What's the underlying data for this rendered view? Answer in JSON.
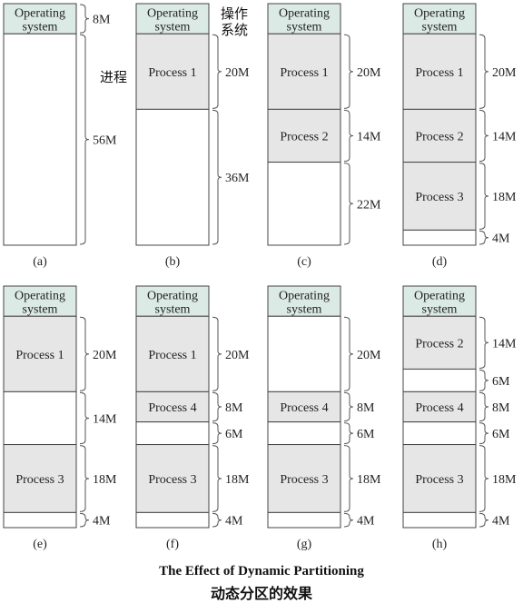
{
  "colors": {
    "os_fill": "#dceae6",
    "process_fill": "#e6e6e6",
    "free_fill": "#ffffff",
    "stroke": "#444444"
  },
  "os_label": [
    "Operating",
    "system"
  ],
  "panels": [
    {
      "label": "(a)",
      "segments": [
        {
          "kind": "os",
          "mb": 8,
          "size": "8M"
        },
        {
          "kind": "free",
          "mb": 56,
          "size": "56M"
        }
      ]
    },
    {
      "label": "(b)",
      "segments": [
        {
          "kind": "os",
          "mb": 8,
          "size": ""
        },
        {
          "kind": "process",
          "mb": 20,
          "name": "Process 1",
          "size": "20M"
        },
        {
          "kind": "free",
          "mb": 36,
          "size": "36M"
        }
      ]
    },
    {
      "label": "(c)",
      "segments": [
        {
          "kind": "os",
          "mb": 8,
          "size": ""
        },
        {
          "kind": "process",
          "mb": 20,
          "name": "Process 1",
          "size": "20M"
        },
        {
          "kind": "process",
          "mb": 14,
          "name": "Process 2",
          "size": "14M"
        },
        {
          "kind": "free",
          "mb": 22,
          "size": "22M"
        }
      ]
    },
    {
      "label": "(d)",
      "segments": [
        {
          "kind": "os",
          "mb": 8,
          "size": ""
        },
        {
          "kind": "process",
          "mb": 20,
          "name": "Process 1",
          "size": "20M"
        },
        {
          "kind": "process",
          "mb": 14,
          "name": "Process 2",
          "size": "14M"
        },
        {
          "kind": "process",
          "mb": 18,
          "name": "Process 3",
          "size": "18M"
        },
        {
          "kind": "free",
          "mb": 4,
          "size": "4M"
        }
      ]
    },
    {
      "label": "(e)",
      "segments": [
        {
          "kind": "os",
          "mb": 8,
          "size": ""
        },
        {
          "kind": "process",
          "mb": 20,
          "name": "Process 1",
          "size": "20M"
        },
        {
          "kind": "free",
          "mb": 14,
          "size": "14M"
        },
        {
          "kind": "process",
          "mb": 18,
          "name": "Process 3",
          "size": "18M"
        },
        {
          "kind": "free",
          "mb": 4,
          "size": "4M"
        }
      ]
    },
    {
      "label": "(f)",
      "segments": [
        {
          "kind": "os",
          "mb": 8,
          "size": ""
        },
        {
          "kind": "process",
          "mb": 20,
          "name": "Process 1",
          "size": "20M"
        },
        {
          "kind": "process",
          "mb": 8,
          "name": "Process 4",
          "size": "8M"
        },
        {
          "kind": "free",
          "mb": 6,
          "size": "6M"
        },
        {
          "kind": "process",
          "mb": 18,
          "name": "Process 3",
          "size": "18M"
        },
        {
          "kind": "free",
          "mb": 4,
          "size": "4M"
        }
      ]
    },
    {
      "label": "(g)",
      "segments": [
        {
          "kind": "os",
          "mb": 8,
          "size": ""
        },
        {
          "kind": "free",
          "mb": 20,
          "size": "20M"
        },
        {
          "kind": "process",
          "mb": 8,
          "name": "Process 4",
          "size": "8M"
        },
        {
          "kind": "free",
          "mb": 6,
          "size": "6M"
        },
        {
          "kind": "process",
          "mb": 18,
          "name": "Process 3",
          "size": "18M"
        },
        {
          "kind": "free",
          "mb": 4,
          "size": "4M"
        }
      ]
    },
    {
      "label": "(h)",
      "segments": [
        {
          "kind": "os",
          "mb": 8,
          "size": ""
        },
        {
          "kind": "process",
          "mb": 14,
          "name": "Process 2",
          "size": "14M"
        },
        {
          "kind": "free",
          "mb": 6,
          "size": "6M"
        },
        {
          "kind": "process",
          "mb": 8,
          "name": "Process 4",
          "size": "8M"
        },
        {
          "kind": "free",
          "mb": 6,
          "size": "6M"
        },
        {
          "kind": "process",
          "mb": 18,
          "name": "Process 3",
          "size": "18M"
        },
        {
          "kind": "free",
          "mb": 4,
          "size": "4M"
        }
      ]
    }
  ],
  "annotations": {
    "process_zh": "进程",
    "os_zh_line1": "操作",
    "os_zh_line2": "系统"
  },
  "caption": {
    "en": "The Effect of Dynamic Partitioning",
    "zh": "动态分区的效果"
  }
}
